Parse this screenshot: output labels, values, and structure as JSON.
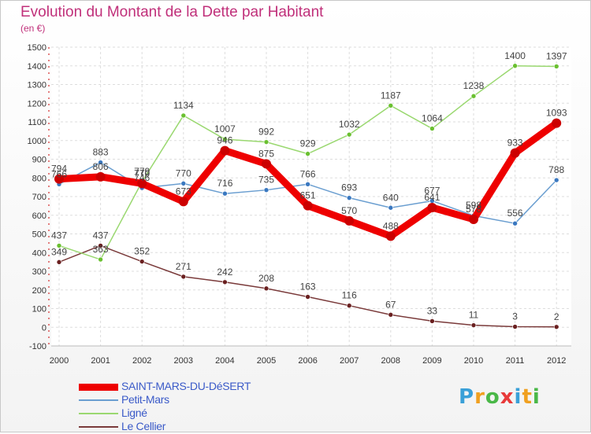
{
  "title": "Evolution du Montant de la Dette par Habitant",
  "unit": "(en €)",
  "logo": [
    "P",
    "r",
    "o",
    "x",
    "i",
    "t",
    "i"
  ],
  "logo_colors": [
    "#3aa0d8",
    "#f0a020",
    "#4ab848",
    "#e83a3a",
    "#3aa0d8",
    "#f0a020",
    "#4ab848"
  ],
  "chart_data": {
    "type": "line",
    "title": "Evolution du Montant de la Dette par Habitant",
    "ylabel": "(en €)",
    "ylim": [
      -100,
      1500
    ],
    "yticks": [
      -100,
      0,
      100,
      200,
      300,
      400,
      500,
      600,
      700,
      800,
      900,
      1000,
      1100,
      1200,
      1300,
      1400,
      1500
    ],
    "categories": [
      "2000",
      "2001",
      "2002",
      "2003",
      "2004",
      "2005",
      "2006",
      "2007",
      "2008",
      "2009",
      "2010",
      "2011",
      "2012"
    ],
    "grid": true,
    "legend_position": "bottom-left",
    "series": [
      {
        "name": "SAINT-MARS-DU-DéSERT",
        "color": "#ee0000",
        "marker": "#cc0000",
        "width": 9,
        "values": [
          794,
          806,
          770,
          673,
          946,
          875,
          651,
          570,
          488,
          641,
          578,
          933,
          1093
        ],
        "labels": [
          "794",
          "806",
          "770",
          "673",
          "946",
          "875",
          "651",
          "570",
          "488",
          "641",
          "578",
          "933",
          "1093"
        ]
      },
      {
        "name": "Petit-Mars",
        "color": "#6a9ed0",
        "marker": "#3a78c0",
        "width": 1.5,
        "values": [
          766,
          883,
          746,
          770,
          716,
          735,
          766,
          693,
          640,
          677,
          598,
          556,
          788
        ],
        "labels": [
          "766",
          "883",
          "746",
          "770",
          "716",
          "735",
          "766",
          "693",
          "640",
          "677",
          "598",
          "556",
          "788"
        ]
      },
      {
        "name": "Ligné",
        "color": "#9ad870",
        "marker": "#6ac030",
        "width": 1.5,
        "values": [
          437,
          363,
          779,
          1134,
          1007,
          992,
          929,
          1032,
          1187,
          1064,
          1238,
          1400,
          1397
        ],
        "labels": [
          "437",
          "363",
          "779",
          "1134",
          "1007",
          "992",
          "929",
          "1032",
          "1187",
          "1064",
          "1238",
          "1400",
          "1397"
        ]
      },
      {
        "name": "Le Cellier",
        "color": "#7a3a3a",
        "marker": "#6a2020",
        "width": 1.5,
        "values": [
          349,
          437,
          352,
          271,
          242,
          208,
          163,
          116,
          67,
          33,
          11,
          3,
          2
        ],
        "labels": [
          "349",
          "437",
          "352",
          "271",
          "242",
          "208",
          "163",
          "116",
          "67",
          "33",
          "11",
          "3",
          "2"
        ]
      }
    ]
  }
}
